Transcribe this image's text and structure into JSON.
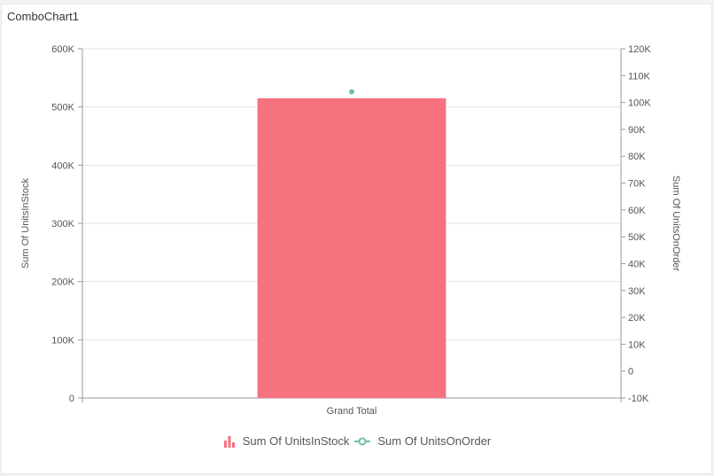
{
  "panel": {
    "title": "ComboChart1"
  },
  "colors": {
    "bar": "#f6727f",
    "line": "#6fbf9d",
    "grid": "#e3e3e3",
    "axis": "#9a9a9a",
    "tick_text": "#555555",
    "legend_text": "#555555"
  },
  "legend": {
    "items": [
      {
        "label": "Sum Of UnitsInStock",
        "icon": "bar-chart-icon"
      },
      {
        "label": "Sum Of UnitsOnOrder",
        "icon": "line-marker-icon"
      }
    ]
  },
  "chart_data": {
    "type": "bar",
    "categories": [
      "Grand Total"
    ],
    "series": [
      {
        "name": "Sum Of UnitsInStock",
        "type": "bar",
        "axis": "left",
        "values": [
          515000
        ]
      },
      {
        "name": "Sum Of UnitsOnOrder",
        "type": "line",
        "axis": "right",
        "values": [
          104000
        ]
      }
    ],
    "title": "",
    "xlabel": "",
    "ylabel": "Sum Of UnitsInStock",
    "y2label": "Sum Of UnitsOnOrder",
    "ylim": [
      0,
      600000
    ],
    "y2lim": [
      -10000,
      120000
    ],
    "yticks": [
      "0",
      "100K",
      "200K",
      "300K",
      "400K",
      "500K",
      "600K"
    ],
    "y2ticks": [
      "-10K",
      "0",
      "10K",
      "20K",
      "30K",
      "40K",
      "50K",
      "60K",
      "70K",
      "80K",
      "90K",
      "100K",
      "110K",
      "120K"
    ],
    "grid": true,
    "legend_position": "bottom"
  }
}
